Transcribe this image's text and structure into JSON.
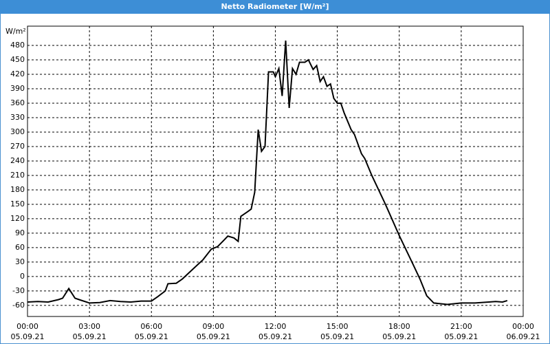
{
  "chart_data": {
    "type": "line",
    "title": "Netto Radiometer [W/m²]",
    "ylabel": "W/m²",
    "x": [
      0,
      0.5,
      1.0,
      1.5,
      1.7,
      2.0,
      2.3,
      2.5,
      3.0,
      3.5,
      4.0,
      4.5,
      5.0,
      5.5,
      6.0,
      6.3,
      6.67,
      6.8,
      7.2,
      7.5,
      8.0,
      8.5,
      8.9,
      9.2,
      9.5,
      9.7,
      10.0,
      10.2,
      10.33,
      10.67,
      10.83,
      11.0,
      11.17,
      11.33,
      11.5,
      11.67,
      11.9,
      12.0,
      12.17,
      12.33,
      12.5,
      12.67,
      12.83,
      13.0,
      13.17,
      13.43,
      13.6,
      13.83,
      14.0,
      14.17,
      14.33,
      14.5,
      14.67,
      14.83,
      15.0,
      15.17,
      15.33,
      15.67,
      15.83,
      16.17,
      16.33,
      16.67,
      17.33,
      18.0,
      18.67,
      19.0,
      19.33,
      19.67,
      20.33,
      21.0,
      21.67,
      22.33,
      22.67,
      23.0,
      23.23
    ],
    "series": [
      {
        "name": "Netto Radiometer",
        "color": "#000000",
        "values": [
          -53,
          -52,
          -53,
          -48,
          -45,
          -25,
          -45,
          -48,
          -55,
          -54,
          -50,
          -52,
          -53,
          -51,
          -51,
          -42,
          -30,
          -15,
          -14,
          -5,
          15,
          35,
          57,
          62,
          75,
          84,
          80,
          73,
          125,
          135,
          140,
          175,
          305,
          260,
          270,
          425,
          425,
          415,
          432,
          375,
          490,
          350,
          432,
          420,
          445,
          445,
          450,
          430,
          438,
          405,
          415,
          395,
          400,
          370,
          360,
          360,
          340,
          305,
          295,
          255,
          245,
          210,
          150,
          85,
          25,
          -5,
          -40,
          -55,
          -58,
          -55,
          -55,
          -53,
          -52,
          -53,
          -50
        ]
      }
    ],
    "xlim": [
      0,
      24
    ],
    "ylim": [
      -83,
      520
    ],
    "xticks": [
      {
        "value": 0,
        "label": "00:00"
      },
      {
        "value": 3,
        "label": "03:00"
      },
      {
        "value": 6,
        "label": "06:00"
      },
      {
        "value": 9,
        "label": "09:00"
      },
      {
        "value": 12,
        "label": "12:00"
      },
      {
        "value": 15,
        "label": "15:00"
      },
      {
        "value": 18,
        "label": "18:00"
      },
      {
        "value": 21,
        "label": "21:00"
      },
      {
        "value": 24,
        "label": "00:00"
      }
    ],
    "xtick_dates": [
      "05.09.21",
      "05.09.21",
      "05.09.21",
      "05.09.21",
      "05.09.21",
      "05.09.21",
      "05.09.21",
      "05.09.21",
      "06.09.21"
    ],
    "yticks": [
      -60,
      -30,
      0,
      30,
      60,
      90,
      120,
      150,
      180,
      210,
      240,
      270,
      300,
      330,
      360,
      390,
      420,
      450,
      480
    ],
    "grid": true
  }
}
